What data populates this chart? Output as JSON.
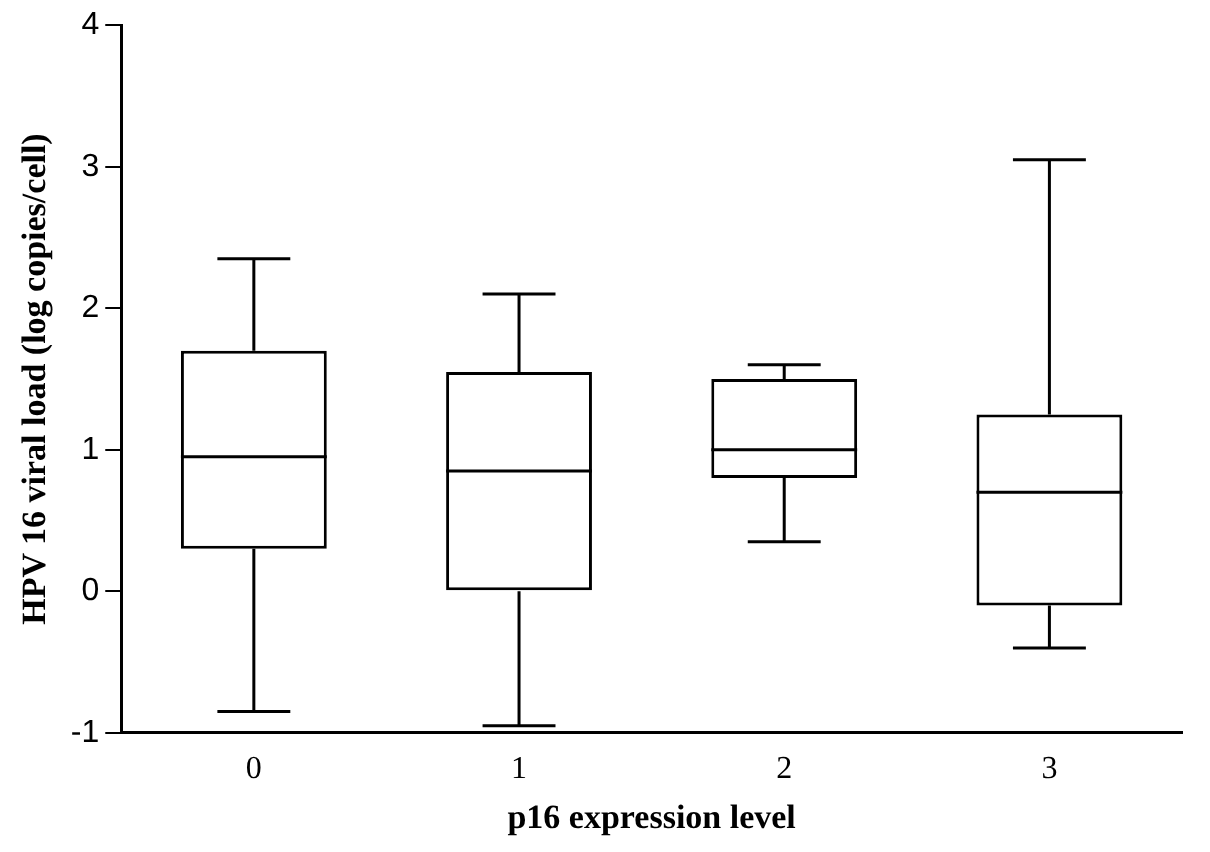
{
  "chart_data": {
    "type": "box",
    "xlabel": "p16 expression level",
    "ylabel": "HPV 16 viral load (log copies/cell)",
    "categories": [
      "0",
      "1",
      "2",
      "3"
    ],
    "boxes": [
      {
        "low": -0.85,
        "q1": 0.3,
        "median": 0.95,
        "q3": 1.7,
        "high": 2.35
      },
      {
        "low": -0.95,
        "q1": 0,
        "median": 0.85,
        "q3": 1.55,
        "high": 2.1
      },
      {
        "low": 0.35,
        "q1": 0.8,
        "median": 1,
        "q3": 1.5,
        "high": 1.6
      },
      {
        "low": -0.4,
        "q1": -0.1,
        "median": 0.7,
        "q3": 1.25,
        "high": 3.05
      }
    ],
    "color": "#000000",
    "ylim": [
      -1,
      4
    ],
    "yticks": [
      -1,
      0,
      1,
      2,
      3,
      4
    ],
    "grid": false,
    "legend": false
  }
}
